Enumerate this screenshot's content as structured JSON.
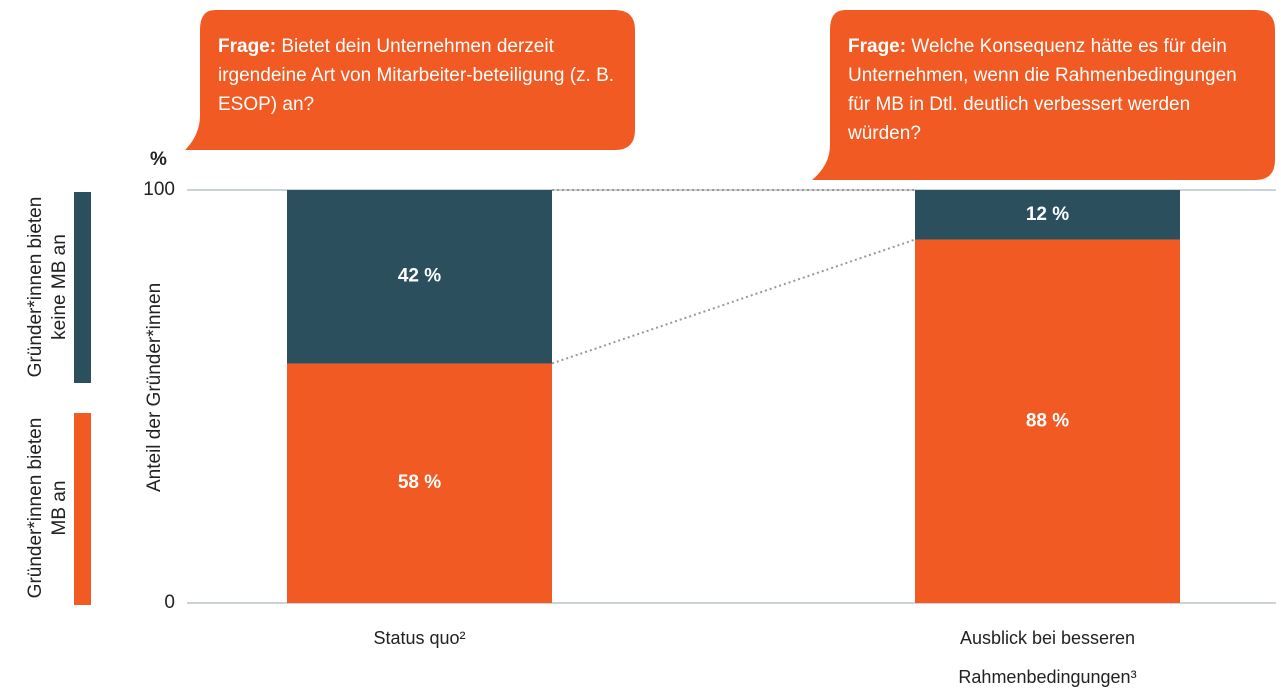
{
  "chart_data": {
    "type": "bar",
    "stacked": true,
    "categories": [
      "Status quo²",
      "Ausblick bei besseren Rahmenbedingungen³"
    ],
    "series": [
      {
        "name": "Gründer*innen bieten MB an",
        "color": "#f15a22",
        "values": [
          58,
          88
        ],
        "value_labels": [
          "58 %",
          "88 %"
        ]
      },
      {
        "name": "Gründer*innen bieten keine MB an",
        "color": "#2b4f5c",
        "values": [
          42,
          12
        ],
        "value_labels": [
          "42 %",
          "12 %"
        ]
      }
    ],
    "ylabel": "Anteil der Gründer*innen",
    "yunit": "%",
    "ylim": [
      0,
      100
    ],
    "yticks": [
      0,
      100
    ],
    "annotations": [
      {
        "label": "Frage:",
        "text": "Bietet dein Unternehmen derzeit irgendeine Art von Mitarbeiter-beteiligung (z. B. ESOP) an?"
      },
      {
        "label": "Frage:",
        "text": "Welche Konsequenz hätte es für dein Unternehmen, wenn die Rahmenbedingungen für MB in Dtl. deutlich verbessert werden würden?"
      }
    ]
  }
}
